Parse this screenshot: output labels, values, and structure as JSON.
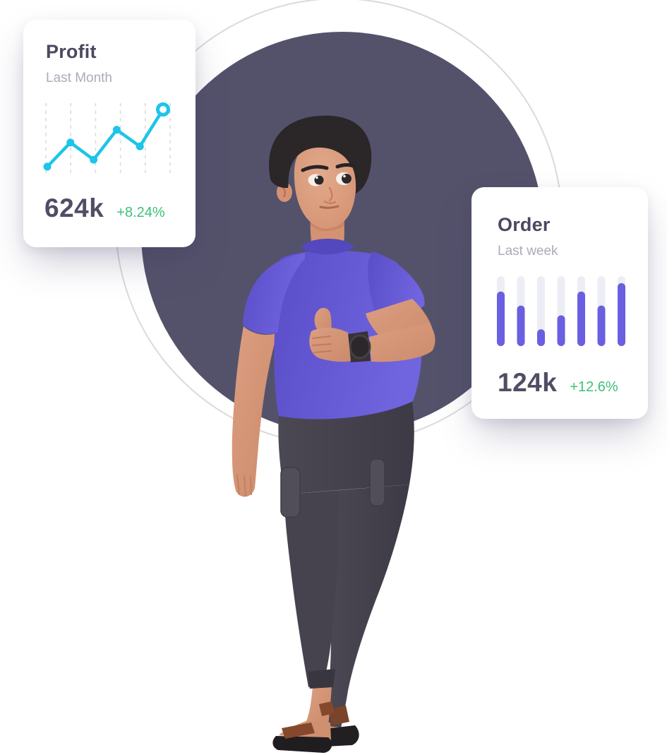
{
  "colors": {
    "accent_cyan": "#1CC5E9",
    "accent_purple": "#6A5FE1",
    "positive_green": "#3CC178",
    "title_text": "#4B4960",
    "subtitle_text": "#ACABB8",
    "value_text": "#504E64",
    "dark_circle": "#54526B",
    "ring": "#DCD9DA",
    "card_bg": "#FFFFFF",
    "gridline": "#D9D9E1",
    "bar_track": "#EDEEF5"
  },
  "profit_card": {
    "title": "Profit",
    "subtitle": "Last Month",
    "value": "624k",
    "change": "+8.24%"
  },
  "order_card": {
    "title": "Order",
    "subtitle": "Last week",
    "value": "124k",
    "change": "+12.6%"
  },
  "chart_data": [
    {
      "type": "line",
      "title": "Profit",
      "subtitle": "Last Month",
      "summary_value": "624k",
      "change": "+8.24%",
      "x": [
        1,
        2,
        3,
        4,
        5,
        6
      ],
      "values": [
        10,
        48,
        21,
        68,
        42,
        100
      ],
      "ylim": [
        0,
        110
      ],
      "grid": "dashed-vertical-only",
      "legend": "none",
      "line_color": "#1CC5E9",
      "last_point_style": "open-ring",
      "point_style": "filled-dot"
    },
    {
      "type": "bar",
      "title": "Order",
      "subtitle": "Last week",
      "summary_value": "124k",
      "change": "+12.6%",
      "categories": [
        1,
        2,
        3,
        4,
        5,
        6,
        7
      ],
      "values": [
        78,
        58,
        24,
        44,
        78,
        58,
        90
      ],
      "ylim": [
        0,
        100
      ],
      "grid": "off",
      "legend": "none",
      "bar_color": "#6A5FE1",
      "track_color": "#EDEEF5",
      "bar_style": "rounded-pill-on-track"
    }
  ]
}
